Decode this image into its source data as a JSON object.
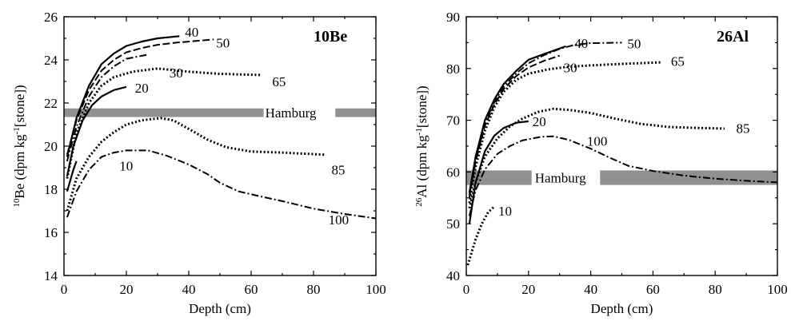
{
  "chart_data": [
    {
      "type": "line",
      "title": "10Be",
      "xlabel": "Depth (cm)",
      "ylabel": {
        "pre": "",
        "sup1": "10",
        "mid": "Be (dpm kg",
        "sup2": "-1",
        "post": "[stone])"
      },
      "xlim": [
        0,
        100
      ],
      "ylim": [
        14,
        26
      ],
      "xticks": [
        0,
        20,
        40,
        60,
        80,
        100
      ],
      "yticks": [
        14,
        16,
        18,
        20,
        22,
        24,
        26
      ],
      "grid": false,
      "band": {
        "label": "Hamburg",
        "y": [
          21.35,
          21.75
        ],
        "x": [
          0,
          100
        ],
        "color": "#909090"
      },
      "series": [
        {
          "label": "10",
          "style": "solid",
          "points": [
            [
              1,
              17.9
            ],
            [
              2,
              18.4
            ],
            [
              3,
              18.9
            ],
            [
              4,
              19.3
            ]
          ]
        },
        {
          "label": "20",
          "style": "solid",
          "points": [
            [
              1,
              18.6
            ],
            [
              3,
              20.0
            ],
            [
              6,
              21.2
            ],
            [
              9,
              21.9
            ],
            [
              12,
              22.3
            ],
            [
              16,
              22.6
            ],
            [
              20,
              22.75
            ]
          ]
        },
        {
          "label": "30",
          "style": "dotted",
          "points": [
            [
              1,
              18.5
            ],
            [
              4,
              20.6
            ],
            [
              8,
              22.0
            ],
            [
              12,
              22.8
            ],
            [
              16,
              23.2
            ],
            [
              22,
              23.45
            ],
            [
              30,
              23.6
            ],
            [
              40,
              23.45
            ],
            [
              50,
              23.35
            ],
            [
              63,
              23.3
            ]
          ]
        },
        {
          "label": "40",
          "style": "solid",
          "points": [
            [
              1,
              19.5
            ],
            [
              4,
              21.3
            ],
            [
              8,
              22.8
            ],
            [
              12,
              23.8
            ],
            [
              16,
              24.3
            ],
            [
              20,
              24.65
            ],
            [
              25,
              24.85
            ],
            [
              30,
              25.0
            ],
            [
              37,
              25.1
            ]
          ]
        },
        {
          "label": "50",
          "style": "longdash",
          "points": [
            [
              1,
              19.6
            ],
            [
              4,
              21.2
            ],
            [
              8,
              22.6
            ],
            [
              12,
              23.5
            ],
            [
              16,
              24.0
            ],
            [
              20,
              24.35
            ],
            [
              25,
              24.55
            ],
            [
              30,
              24.7
            ],
            [
              36,
              24.8
            ],
            [
              48,
              24.95
            ]
          ]
        },
        {
          "label": "65",
          "style": "dashdot",
          "points": [
            [
              1,
              19.3
            ],
            [
              4,
              20.9
            ],
            [
              8,
              22.3
            ],
            [
              12,
              23.2
            ],
            [
              16,
              23.7
            ],
            [
              20,
              24.05
            ],
            [
              27,
              24.25
            ]
          ]
        },
        {
          "label": "85",
          "style": "dotted",
          "points": [
            [
              1,
              17.0
            ],
            [
              4,
              18.5
            ],
            [
              8,
              19.5
            ],
            [
              12,
              20.2
            ],
            [
              16,
              20.65
            ],
            [
              20,
              21.0
            ],
            [
              25,
              21.2
            ],
            [
              31,
              21.3
            ],
            [
              35,
              21.2
            ],
            [
              40,
              20.8
            ],
            [
              46,
              20.3
            ],
            [
              52,
              19.95
            ],
            [
              60,
              19.75
            ],
            [
              70,
              19.7
            ],
            [
              84,
              19.6
            ]
          ]
        },
        {
          "label": "100",
          "style": "dashdot",
          "points": [
            [
              1,
              16.7
            ],
            [
              4,
              17.9
            ],
            [
              8,
              18.9
            ],
            [
              12,
              19.5
            ],
            [
              16,
              19.7
            ],
            [
              20,
              19.8
            ],
            [
              27,
              19.8
            ],
            [
              33,
              19.55
            ],
            [
              40,
              19.15
            ],
            [
              46,
              18.7
            ],
            [
              50,
              18.3
            ],
            [
              56,
              17.9
            ],
            [
              62,
              17.7
            ],
            [
              70,
              17.45
            ],
            [
              80,
              17.1
            ],
            [
              90,
              16.85
            ],
            [
              100,
              16.65
            ]
          ]
        }
      ]
    },
    {
      "type": "line",
      "title": "26Al",
      "xlabel": "Depth (cm)",
      "ylabel": {
        "pre": "",
        "sup1": "26",
        "mid": "Al (dpm kg",
        "sup2": "-1",
        "post": "[stone])"
      },
      "xlim": [
        0,
        100
      ],
      "ylim": [
        40,
        90
      ],
      "xticks": [
        0,
        20,
        40,
        60,
        80,
        100
      ],
      "yticks": [
        40,
        50,
        60,
        70,
        80,
        90
      ],
      "grid": false,
      "band": {
        "label": "Hamburg",
        "y": [
          57.5,
          60.3
        ],
        "x": [
          0,
          100
        ],
        "color": "#909090"
      },
      "series": [
        {
          "label": "10",
          "style": "dotted",
          "points": [
            [
              0.5,
              42
            ],
            [
              1.5,
              44
            ],
            [
              3,
              47
            ],
            [
              5,
              50
            ],
            [
              7,
              52.2
            ],
            [
              9,
              53.3
            ]
          ]
        },
        {
          "label": "20",
          "style": "solid",
          "points": [
            [
              1,
              50
            ],
            [
              3,
              58
            ],
            [
              6,
              64
            ],
            [
              9,
              67
            ],
            [
              12,
              68.5
            ],
            [
              16,
              69.5
            ],
            [
              20,
              69.8
            ]
          ]
        },
        {
          "label": "30",
          "style": "dotted",
          "points": [
            [
              1,
              54
            ],
            [
              3,
              61
            ],
            [
              6,
              68
            ],
            [
              9,
              72.5
            ],
            [
              12,
              75.5
            ],
            [
              16,
              77.8
            ],
            [
              20,
              79
            ],
            [
              26,
              79.8
            ],
            [
              32,
              80.3
            ],
            [
              40,
              80.6
            ],
            [
              50,
              80.9
            ],
            [
              63,
              81.2
            ]
          ]
        },
        {
          "label": "40",
          "style": "solid",
          "points": [
            [
              1,
              56
            ],
            [
              3,
              63
            ],
            [
              6,
              70
            ],
            [
              9,
              74
            ],
            [
              12,
              77
            ],
            [
              16,
              79.5
            ],
            [
              20,
              81.7
            ],
            [
              25,
              82.8
            ],
            [
              32,
              84.3
            ]
          ]
        },
        {
          "label": "50",
          "style": "dashdot",
          "points": [
            [
              1,
              55.5
            ],
            [
              3,
              62.5
            ],
            [
              6,
              69.5
            ],
            [
              9,
              73.5
            ],
            [
              12,
              76.5
            ],
            [
              16,
              79
            ],
            [
              20,
              81
            ],
            [
              25,
              82.6
            ],
            [
              30,
              83.8
            ],
            [
              35,
              84.6
            ],
            [
              40,
              84.9
            ],
            [
              50,
              85
            ]
          ]
        },
        {
          "label": "65",
          "style": "longdash",
          "points": [
            [
              1,
              55
            ],
            [
              3,
              62
            ],
            [
              6,
              69
            ],
            [
              9,
              73
            ],
            [
              12,
              76
            ],
            [
              16,
              78.5
            ],
            [
              20,
              80.2
            ],
            [
              25,
              81.5
            ],
            [
              30,
              82.5
            ]
          ]
        },
        {
          "label": "85",
          "style": "dotted",
          "points": [
            [
              1,
              53
            ],
            [
              3,
              58
            ],
            [
              6,
              63
            ],
            [
              10,
              66.5
            ],
            [
              14,
              68.8
            ],
            [
              18,
              70.3
            ],
            [
              23,
              71.6
            ],
            [
              28,
              72.2
            ],
            [
              33,
              72
            ],
            [
              40,
              71.4
            ],
            [
              48,
              70.3
            ],
            [
              56,
              69.3
            ],
            [
              65,
              68.7
            ],
            [
              75,
              68.5
            ],
            [
              83,
              68.4
            ]
          ]
        },
        {
          "label": "100",
          "style": "dashdot",
          "points": [
            [
              1,
              51.5
            ],
            [
              3,
              56.5
            ],
            [
              6,
              60.5
            ],
            [
              10,
              63.5
            ],
            [
              14,
              65
            ],
            [
              18,
              66.1
            ],
            [
              24,
              66.8
            ],
            [
              28,
              66.9
            ],
            [
              33,
              66.2
            ],
            [
              40,
              64.5
            ],
            [
              46,
              62.8
            ],
            [
              52,
              61.2
            ],
            [
              60,
              60.2
            ],
            [
              70,
              59.3
            ],
            [
              80,
              58.7
            ],
            [
              90,
              58.3
            ],
            [
              100,
              58
            ]
          ]
        }
      ]
    }
  ]
}
